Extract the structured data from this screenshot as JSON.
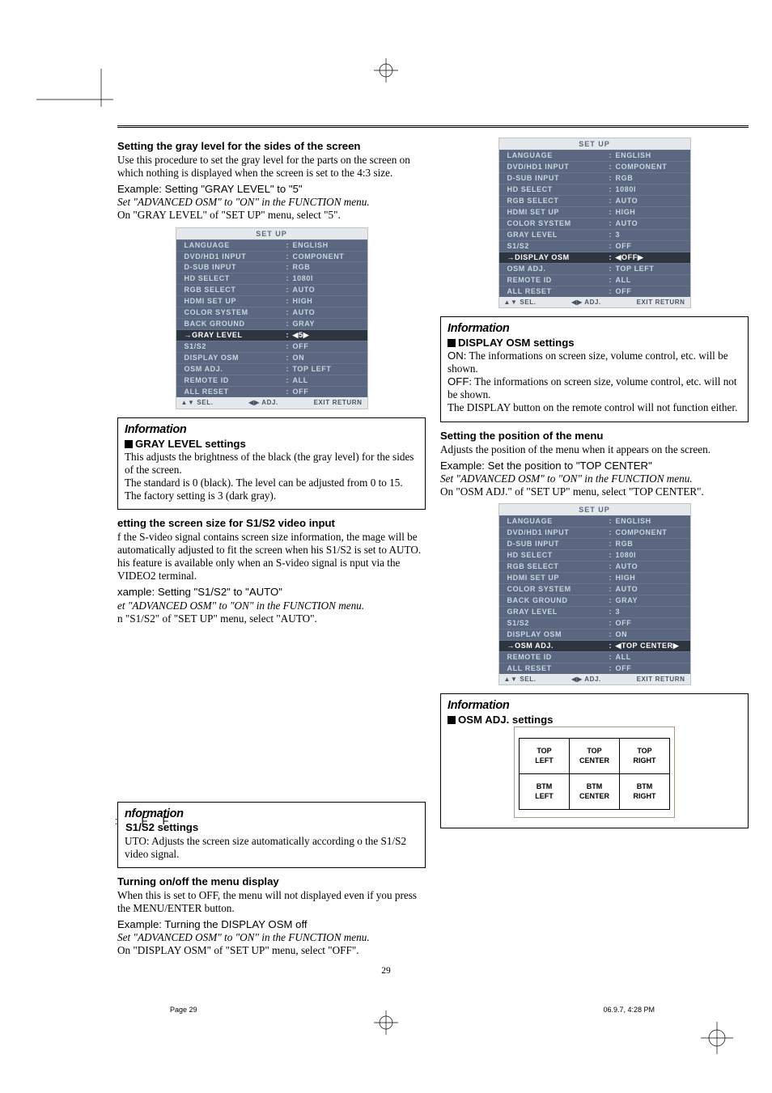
{
  "page": {
    "number": "29",
    "footer_left": "Page 29",
    "footer_right": "06.9.7, 4:28 PM"
  },
  "off_label": ":        F     F",
  "col1": {
    "h1": "Setting the gray level for the sides of the screen",
    "p1a": "Use this procedure to set the gray level for the parts on the screen on which nothing is displayed when the screen is set to the 4:3 size.",
    "ex1": "Example: Setting \"GRAY LEVEL\" to \"5\"",
    "it1": "Set \"ADVANCED OSM\" to \"ON\" in the FUNCTION menu.",
    "p1b": "On \"GRAY LEVEL\" of \"SET UP\" menu, select \"5\".",
    "info1_sub": "GRAY LEVEL settings",
    "info1_p1": "This adjusts the brightness of the black (the gray level) for the sides of the screen.",
    "info1_p2": "The standard is 0 (black). The level can be adjusted from 0 to 15. The factory setting is 3 (dark gray).",
    "h2": "etting the screen size for S1/S2 video input",
    "p2a": "f the S-video signal contains screen size information, the mage will be automatically adjusted to fit the screen when his S1/S2 is set to AUTO.",
    "p2b": "his feature is available only when an S-video signal is nput via the VIDEO2 terminal.",
    "ex2": "xample: Setting \"S1/S2\" to \"AUTO\"",
    "it2": "et \"ADVANCED OSM\" to \"ON\" in the FUNCTION menu.",
    "p2c": "n \"S1/S2\" of \"SET UP\" menu, select \"AUTO\".",
    "info2_title": "nformation",
    "info2_sub": "S1/S2 settings",
    "info2_p1": "UTO: Adjusts the screen size automatically according o the S1/S2 video signal.",
    "h3": "Turning on/off the menu display",
    "p3a": "When this is set to OFF, the menu will not displayed even if you press the MENU/ENTER button.",
    "ex3": "Example: Turning the DISPLAY OSM off",
    "it3": "Set \"ADVANCED OSM\" to \"ON\" in the FUNCTION menu.",
    "p3b": "On \"DISPLAY OSM\" of \"SET UP\" menu, select \"OFF\"."
  },
  "col2": {
    "info3_sub": "DISPLAY OSM settings",
    "info3_p1": "ON: The informations on screen size, volume control, etc. will be shown.",
    "info3_p2": "OFF: The informations on screen size, volume control, etc. will not be shown.",
    "info3_p3": "The DISPLAY button on the remote control will not function either.",
    "h4": "Setting the position of the menu",
    "p4a": "Adjusts the position of the menu when it appears on the screen.",
    "ex4": "Example: Set the position to \"TOP CENTER\"",
    "it4": "Set \"ADVANCED OSM\" to \"ON\" in the FUNCTION menu.",
    "p4b": "On \"OSM ADJ.\" of \"SET UP\" menu, select \"TOP CENTER\".",
    "info4_sub": "OSM ADJ. settings",
    "grid": [
      [
        "TOP\nLEFT",
        "TOP\nCENTER",
        "TOP\nRIGHT"
      ],
      [
        "BTM\nLEFT",
        "BTM\nCENTER",
        "BTM\nRIGHT"
      ]
    ]
  },
  "info_title": "Information",
  "osd": {
    "title": "SET UP",
    "foot_l": "▲▼ SEL.",
    "foot_m": "◀▶ ADJ.",
    "foot_r": "EXIT RETURN",
    "menu1": [
      {
        "l": "LANGUAGE",
        "v": "ENGLISH"
      },
      {
        "l": "DVD/HD1 INPUT",
        "v": "COMPONENT"
      },
      {
        "l": "D-SUB INPUT",
        "v": "RGB"
      },
      {
        "l": "HD SELECT",
        "v": "1080I"
      },
      {
        "l": "RGB SELECT",
        "v": "AUTO"
      },
      {
        "l": "HDMI SET UP",
        "v": "HIGH"
      },
      {
        "l": "COLOR SYSTEM",
        "v": "AUTO"
      },
      {
        "l": "BACK GROUND",
        "v": "GRAY"
      },
      {
        "l": "→GRAY LEVEL",
        "v": "◀5▶",
        "sel": true
      },
      {
        "l": "S1/S2",
        "v": "OFF"
      },
      {
        "l": "DISPLAY OSM",
        "v": "ON"
      },
      {
        "l": "OSM ADJ.",
        "v": "TOP LEFT"
      },
      {
        "l": "REMOTE ID",
        "v": "ALL"
      },
      {
        "l": "ALL RESET",
        "v": "OFF"
      }
    ],
    "menu2": [
      {
        "l": "LANGUAGE",
        "v": "ENGLISH"
      },
      {
        "l": "DVD/HD1 INPUT",
        "v": "COMPONENT"
      },
      {
        "l": "D-SUB INPUT",
        "v": "RGB"
      },
      {
        "l": "HD SELECT",
        "v": "1080I"
      },
      {
        "l": "RGB SELECT",
        "v": "AUTO"
      },
      {
        "l": "HDMI SET UP",
        "v": "HIGH"
      },
      {
        "l": "COLOR SYSTEM",
        "v": "AUTO"
      },
      {
        "l": "GRAY LEVEL",
        "v": "3"
      },
      {
        "l": "S1/S2",
        "v": "OFF"
      },
      {
        "l": "→DISPLAY OSM",
        "v": "◀OFF▶",
        "sel": true
      },
      {
        "l": "OSM ADJ.",
        "v": "TOP LEFT"
      },
      {
        "l": "REMOTE ID",
        "v": "ALL"
      },
      {
        "l": "ALL RESET",
        "v": "OFF"
      }
    ],
    "menu3": [
      {
        "l": "LANGUAGE",
        "v": "ENGLISH"
      },
      {
        "l": "DVD/HD1 INPUT",
        "v": "COMPONENT"
      },
      {
        "l": "D-SUB INPUT",
        "v": "RGB"
      },
      {
        "l": "HD SELECT",
        "v": "1080I"
      },
      {
        "l": "RGB SELECT",
        "v": "AUTO"
      },
      {
        "l": "HDMI SET UP",
        "v": "HIGH"
      },
      {
        "l": "COLOR SYSTEM",
        "v": "AUTO"
      },
      {
        "l": "BACK GROUND",
        "v": "GRAY"
      },
      {
        "l": "GRAY LEVEL",
        "v": "3"
      },
      {
        "l": "S1/S2",
        "v": "OFF"
      },
      {
        "l": "DISPLAY OSM",
        "v": "ON"
      },
      {
        "l": "→OSM ADJ.",
        "v": "◀TOP CENTER▶",
        "sel": true
      },
      {
        "l": "REMOTE ID",
        "v": "ALL"
      },
      {
        "l": "ALL RESET",
        "v": "OFF"
      }
    ]
  }
}
